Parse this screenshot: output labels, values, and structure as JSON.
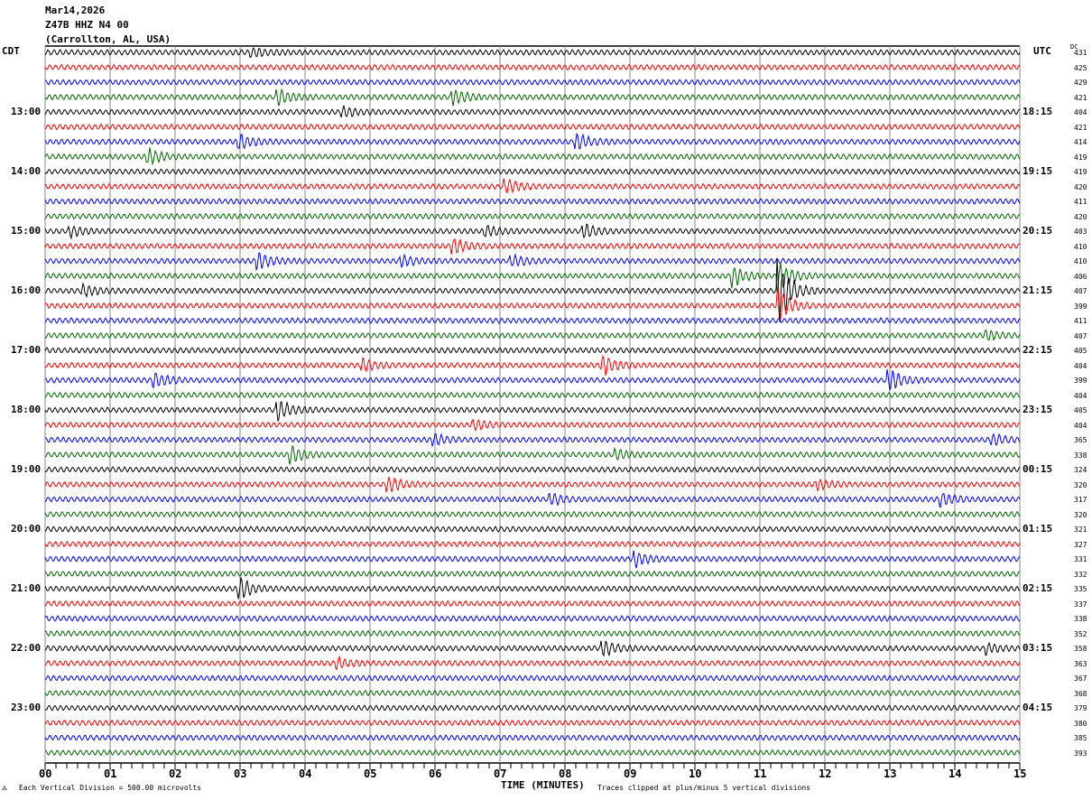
{
  "header": {
    "date": "Mar14,2026",
    "station": "Z47B HHZ N4 00",
    "location": "(Carrollton, AL, USA)"
  },
  "left_tz": "CDT",
  "right_tz": "UTC",
  "dc_label": "DC",
  "footer": {
    "scale": "Each Vertical Division =  500.00 microvolts",
    "xlabel": "TIME (MINUTES)",
    "clip": "Traces clipped at plus/minus 5 vertical divisions"
  },
  "chart_data": {
    "type": "line",
    "title": "Z47B HHZ N4 00 helicorder Mar14,2026",
    "xlabel": "TIME (MINUTES)",
    "xlim": [
      0,
      15
    ],
    "x_ticks": [
      "00",
      "01",
      "02",
      "03",
      "04",
      "05",
      "06",
      "07",
      "08",
      "09",
      "10",
      "11",
      "12",
      "13",
      "14",
      "15"
    ],
    "trace_colors": [
      "#000000",
      "#ff0000",
      "#0000ff",
      "#006600"
    ],
    "trace_count": 48,
    "left_hour_labels": [
      "13:00",
      "14:00",
      "15:00",
      "16:00",
      "17:00",
      "18:00",
      "19:00",
      "20:00",
      "21:00",
      "22:00",
      "23:00"
    ],
    "right_hour_labels": [
      "18:15",
      "19:15",
      "20:15",
      "21:15",
      "22:15",
      "23:15",
      "00:15",
      "01:15",
      "02:15",
      "03:15",
      "04:15"
    ],
    "dc_offsets": [
      431,
      425,
      429,
      421,
      404,
      421,
      414,
      419,
      419,
      420,
      411,
      420,
      403,
      410,
      410,
      406,
      407,
      399,
      411,
      407,
      405,
      404,
      399,
      404,
      405,
      404,
      365,
      338,
      324,
      320,
      317,
      320,
      321,
      327,
      331,
      332,
      335,
      337,
      338,
      352,
      358,
      363,
      367,
      368,
      379,
      380,
      385,
      393
    ],
    "events": [
      {
        "trace": 0,
        "minute": 3.2,
        "amp": 2
      },
      {
        "trace": 3,
        "minute": 3.6,
        "amp": 3
      },
      {
        "trace": 3,
        "minute": 6.3,
        "amp": 3
      },
      {
        "trace": 4,
        "minute": 4.6,
        "amp": 2
      },
      {
        "trace": 6,
        "minute": 3.0,
        "amp": 3
      },
      {
        "trace": 6,
        "minute": 8.2,
        "amp": 3
      },
      {
        "trace": 7,
        "minute": 1.6,
        "amp": 3
      },
      {
        "trace": 9,
        "minute": 7.1,
        "amp": 3
      },
      {
        "trace": 12,
        "minute": 0.4,
        "amp": 2
      },
      {
        "trace": 12,
        "minute": 6.8,
        "amp": 2
      },
      {
        "trace": 12,
        "minute": 8.3,
        "amp": 3
      },
      {
        "trace": 13,
        "minute": 6.3,
        "amp": 3
      },
      {
        "trace": 14,
        "minute": 3.3,
        "amp": 3
      },
      {
        "trace": 14,
        "minute": 5.5,
        "amp": 2
      },
      {
        "trace": 14,
        "minute": 7.2,
        "amp": 2
      },
      {
        "trace": 15,
        "minute": 10.6,
        "amp": 4
      },
      {
        "trace": 15,
        "minute": 11.3,
        "amp": 6
      },
      {
        "trace": 16,
        "minute": 11.3,
        "amp": 14
      },
      {
        "trace": 16,
        "minute": 0.6,
        "amp": 2
      },
      {
        "trace": 17,
        "minute": 11.3,
        "amp": 6
      },
      {
        "trace": 19,
        "minute": 14.5,
        "amp": 2
      },
      {
        "trace": 21,
        "minute": 4.9,
        "amp": 2
      },
      {
        "trace": 21,
        "minute": 8.6,
        "amp": 4
      },
      {
        "trace": 22,
        "minute": 1.7,
        "amp": 3
      },
      {
        "trace": 22,
        "minute": 13.0,
        "amp": 4
      },
      {
        "trace": 24,
        "minute": 3.6,
        "amp": 4
      },
      {
        "trace": 25,
        "minute": 6.6,
        "amp": 2
      },
      {
        "trace": 26,
        "minute": 6.0,
        "amp": 2
      },
      {
        "trace": 26,
        "minute": 14.6,
        "amp": 2
      },
      {
        "trace": 27,
        "minute": 3.8,
        "amp": 3
      },
      {
        "trace": 27,
        "minute": 8.8,
        "amp": 2
      },
      {
        "trace": 29,
        "minute": 5.3,
        "amp": 3
      },
      {
        "trace": 29,
        "minute": 11.9,
        "amp": 2
      },
      {
        "trace": 30,
        "minute": 7.8,
        "amp": 2
      },
      {
        "trace": 30,
        "minute": 13.8,
        "amp": 3
      },
      {
        "trace": 34,
        "minute": 9.1,
        "amp": 3
      },
      {
        "trace": 36,
        "minute": 3.0,
        "amp": 4
      },
      {
        "trace": 40,
        "minute": 8.6,
        "amp": 3
      },
      {
        "trace": 40,
        "minute": 14.5,
        "amp": 2
      },
      {
        "trace": 41,
        "minute": 4.5,
        "amp": 2
      }
    ]
  }
}
